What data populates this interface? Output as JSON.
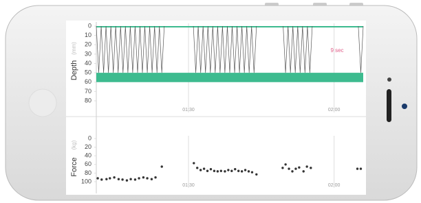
{
  "chart_data": [
    {
      "type": "line",
      "y_label": "Depth",
      "y_unit": "(mm)",
      "annotation": "9 sec",
      "xlim": [
        71,
        126
      ],
      "xticks": [
        {
          "value": 90,
          "label": "01:30"
        },
        {
          "value": 120,
          "label": "02:00"
        }
      ],
      "ylim": [
        0,
        80
      ],
      "yticks": [
        0,
        10,
        20,
        30,
        40,
        50,
        60,
        70,
        80
      ],
      "y_inverted": true,
      "bands": [
        {
          "from": 0,
          "to": 1.5,
          "color": "#3dbb8f"
        },
        {
          "from": 50,
          "to": 60,
          "color": "#3dbb8f"
        }
      ],
      "x": [
        71,
        71.5,
        72,
        72.5,
        73,
        73.5,
        74,
        74.5,
        75,
        75.5,
        76,
        76.5,
        77,
        77.5,
        78,
        78.5,
        79,
        79.5,
        80,
        80.5,
        81,
        81.5,
        82,
        82.5,
        83,
        83.5,
        84,
        84.5,
        85,
        null,
        91,
        91.5,
        92,
        92.5,
        93,
        93.5,
        94,
        94.5,
        95,
        95.5,
        96,
        96.5,
        97,
        97.5,
        98,
        98.5,
        99,
        99.5,
        100,
        100.5,
        101,
        101.5,
        102,
        102.5,
        103,
        103.5,
        104,
        null,
        109.5,
        110,
        110.5,
        111,
        111.5,
        112,
        112.5,
        113,
        113.5,
        114,
        114.5,
        115,
        115.5,
        null,
        125,
        125.5,
        126
      ],
      "series": [
        {
          "color": "#555555",
          "values": [
            0,
            50,
            0,
            50,
            0,
            50,
            0,
            50,
            0,
            50,
            0,
            50,
            0,
            50,
            0,
            50,
            0,
            50,
            0,
            50,
            0,
            50,
            0,
            50,
            0,
            50,
            0,
            50,
            0,
            null,
            0,
            50,
            0,
            50,
            0,
            50,
            0,
            50,
            0,
            50,
            0,
            50,
            0,
            50,
            0,
            50,
            0,
            50,
            0,
            50,
            0,
            50,
            0,
            50,
            0,
            50,
            0,
            null,
            0,
            50,
            0,
            50,
            0,
            50,
            0,
            50,
            0,
            50,
            0,
            50,
            0,
            null,
            0,
            50,
            0
          ]
        }
      ]
    },
    {
      "type": "scatter",
      "y_label": "Force",
      "y_unit": "(kg)",
      "xlim": [
        71,
        126
      ],
      "xticks": [
        {
          "value": 90,
          "label": "01:30"
        },
        {
          "value": 120,
          "label": "02:00"
        }
      ],
      "ylim": [
        0,
        100
      ],
      "yticks": [
        0,
        20,
        40,
        60,
        80,
        100
      ],
      "y_inverted": true,
      "x": [
        71.3,
        72.1,
        73.1,
        73.8,
        74.7,
        75.6,
        76.4,
        77.3,
        78.1,
        79.0,
        79.8,
        80.7,
        81.5,
        82.4,
        83.2,
        84.5,
        91.1,
        91.8,
        92.5,
        93.2,
        93.9,
        94.6,
        95.3,
        96.0,
        96.7,
        97.5,
        98.2,
        98.9,
        99.6,
        100.3,
        101.0,
        101.7,
        102.4,
        103.1,
        104.0,
        109.4,
        110.0,
        110.7,
        111.4,
        112.1,
        112.8,
        113.7,
        114.4,
        115.2,
        124.8,
        125.5
      ],
      "series": [
        {
          "color": "#333333",
          "values": [
            92,
            95,
            94,
            92,
            90,
            94,
            95,
            97,
            94,
            95,
            92,
            90,
            92,
            94,
            90,
            65,
            57,
            68,
            73,
            70,
            75,
            71,
            75,
            76,
            75,
            76,
            73,
            75,
            71,
            75,
            76,
            73,
            76,
            78,
            83,
            68,
            60,
            70,
            76,
            70,
            67,
            76,
            65,
            68,
            70,
            70
          ]
        }
      ]
    }
  ]
}
